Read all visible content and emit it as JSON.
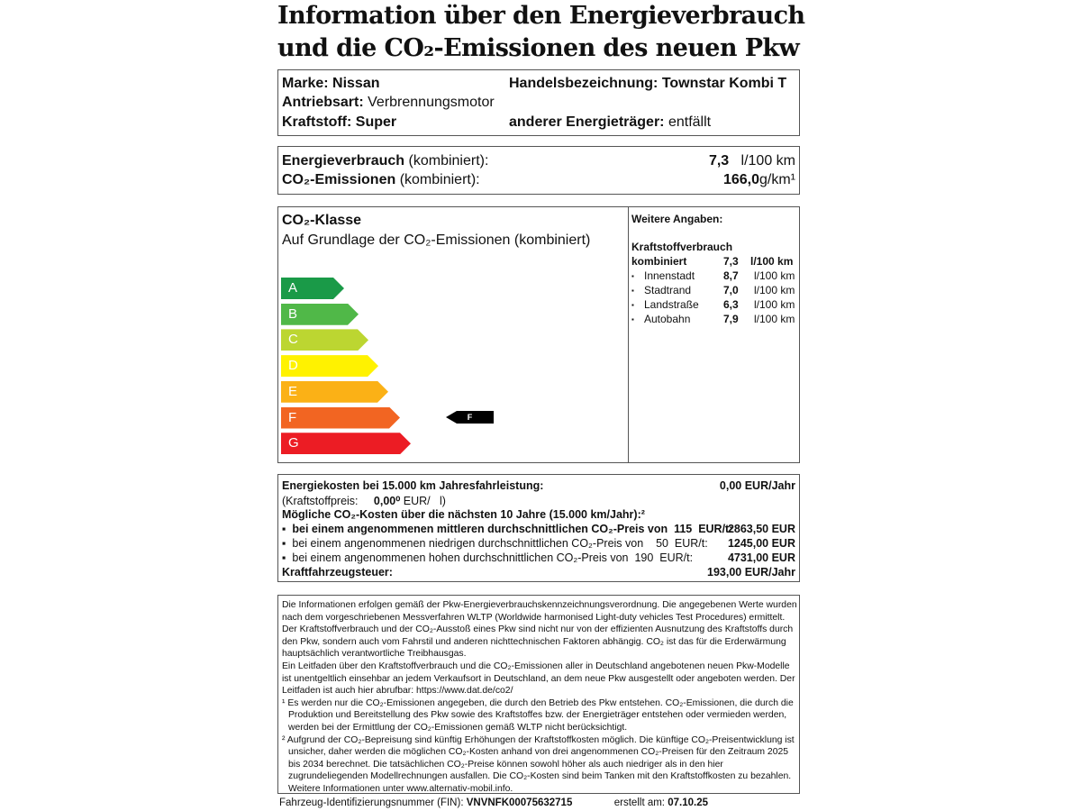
{
  "title": {
    "line1": "Information über den Energieverbrauch",
    "line2": "und die CO₂-Emissionen des neuen Pkw"
  },
  "vehicle": {
    "marke_label": "Marke:",
    "marke": "Nissan",
    "handel_label": "Handelsbezeichnung:",
    "handel": "Townstar Kombi T",
    "antrieb_label": "Antriebsart:",
    "antrieb": "Verbrennungsmotor",
    "kraftstoff_label": "Kraftstoff:",
    "kraftstoff": "Super",
    "anderer_label": "anderer Energieträger:",
    "anderer": "entfällt"
  },
  "consumption": {
    "energie_label": "Energieverbrauch",
    "energie_suffix": "(kombiniert):",
    "energie_value": "7,3",
    "energie_unit": "l/100 km",
    "co2_label": "CO₂-Emissionen",
    "co2_suffix": "(kombiniert):",
    "co2_value": "166,0",
    "co2_unit": "g/km¹"
  },
  "co2_class": {
    "title": "CO₂-Klasse",
    "subtitle": "Auf Grundlage der CO₂-Emissionen (kombiniert)",
    "classes": [
      {
        "label": "A",
        "color": "#1a9a48"
      },
      {
        "label": "B",
        "color": "#50b848"
      },
      {
        "label": "C",
        "color": "#bcd631"
      },
      {
        "label": "D",
        "color": "#fff200"
      },
      {
        "label": "E",
        "color": "#fbb116"
      },
      {
        "label": "F",
        "color": "#f26522"
      },
      {
        "label": "G",
        "color": "#ec1c24"
      }
    ],
    "current": "F"
  },
  "weitere": {
    "title": "Weitere Angaben:",
    "heading": "Kraftstoffverbrauch",
    "kombiniert_label": "kombiniert",
    "kombiniert_value": "7,3",
    "kombiniert_unit": "l/100 km",
    "rows": [
      {
        "label": "Innenstadt",
        "value": "8,7",
        "unit": "l/100 km"
      },
      {
        "label": "Stadtrand",
        "value": "7,0",
        "unit": "l/100 km"
      },
      {
        "label": "Landstraße",
        "value": "6,3",
        "unit": "l/100 km"
      },
      {
        "label": "Autobahn",
        "value": "7,9",
        "unit": "l/100 km"
      }
    ]
  },
  "costs": {
    "energie_label": "Energiekosten bei 15.000 km Jahresfahrleistung:",
    "energie_value": "0,00 EUR/Jahr",
    "preis_label": "(Kraftstoffpreis:",
    "preis_value": "0,00⁰",
    "preis_unit": "EUR/   l)",
    "co2_heading": "Mögliche CO₂-Kosten über die nächsten 10 Jahre (15.000 km/Jahr):²",
    "rows": [
      {
        "label": "bei einem angenommenen mittleren durchschnittlichen CO₂-Preis von  115  EUR/t:",
        "value": "2863,50 EUR"
      },
      {
        "label": "bei einem angenommenen niedrigen durchschnittlichen CO₂-Preis von    50  EUR/t:",
        "value": "1245,00 EUR"
      },
      {
        "label": "bei einem angenommenen hohen durchschnittlichen CO₂-Preis von  190  EUR/t:",
        "value": "4731,00 EUR"
      }
    ],
    "steuer_label": "Kraftfahrzeugsteuer:",
    "steuer_value": "193,00 EUR/Jahr"
  },
  "footnotes": {
    "p1": "Die Informationen erfolgen gemäß der Pkw-Energieverbrauchskennzeichnungsverordnung. Die angegebenen Werte wurden nach dem vorgeschriebenen Messverfahren WLTP (Worldwide harmonised Light-duty vehicles Test Procedures) ermittelt. Der Kraftstoffverbrauch und der CO₂-Ausstoß eines Pkw sind nicht nur von der effizienten Ausnutzung des Kraftstoffs durch den Pkw, sondern auch vom Fahrstil und anderen nichttechnischen Faktoren abhängig. CO₂ ist das für die Erderwärmung hauptsächlich verantwortliche Treibhausgas.",
    "p2": "Ein Leitfaden über den Kraftstoffverbrauch und die CO₂-Emissionen aller in Deutschland angebotenen neuen Pkw-Modelle ist unentgeltlich einsehbar an jedem Verkaufsort in Deutschland, an dem neue Pkw ausgestellt oder angeboten werden. Der Leitfaden ist auch hier abrufbar:  https://www.dat.de/co2/",
    "fn1": "¹ Es werden nur die CO₂-Emissionen angegeben, die durch den Betrieb des Pkw entstehen. CO₂-Emissionen, die durch die Produktion und Bereitstellung des Pkw sowie des Kraftstoffes bzw. der Energieträger entstehen oder vermieden werden, werden bei der Ermittlung der CO₂-Emissionen gemäß WLTP nicht berücksichtigt.",
    "fn2": "² Aufgrund der CO₂-Bepreisung sind künftig Erhöhungen der Kraftstoffkosten möglich. Die künftige CO₂-Preisentwicklung ist unsicher, daher werden die möglichen CO₂-Kosten anhand von drei angenommenen CO₂-Preisen für den Zeitraum  2025 bis  2034  berechnet. Die tatsächlichen CO₂-Preise können sowohl höher als auch niedriger als in den hier zugrundeliegenden Modellrechnungen ausfallen. Die CO₂-Kosten sind beim Tanken mit den Kraftstoffkosten zu bezahlen. Weitere Informationen unter www.alternativ-mobil.info."
  },
  "bottom": {
    "fin_label": "Fahrzeug-Identifizierungsnummer (FIN):",
    "fin": "VNVNFK00075632715",
    "erstellt_label": "erstellt am:",
    "erstellt": "07.10.25"
  }
}
